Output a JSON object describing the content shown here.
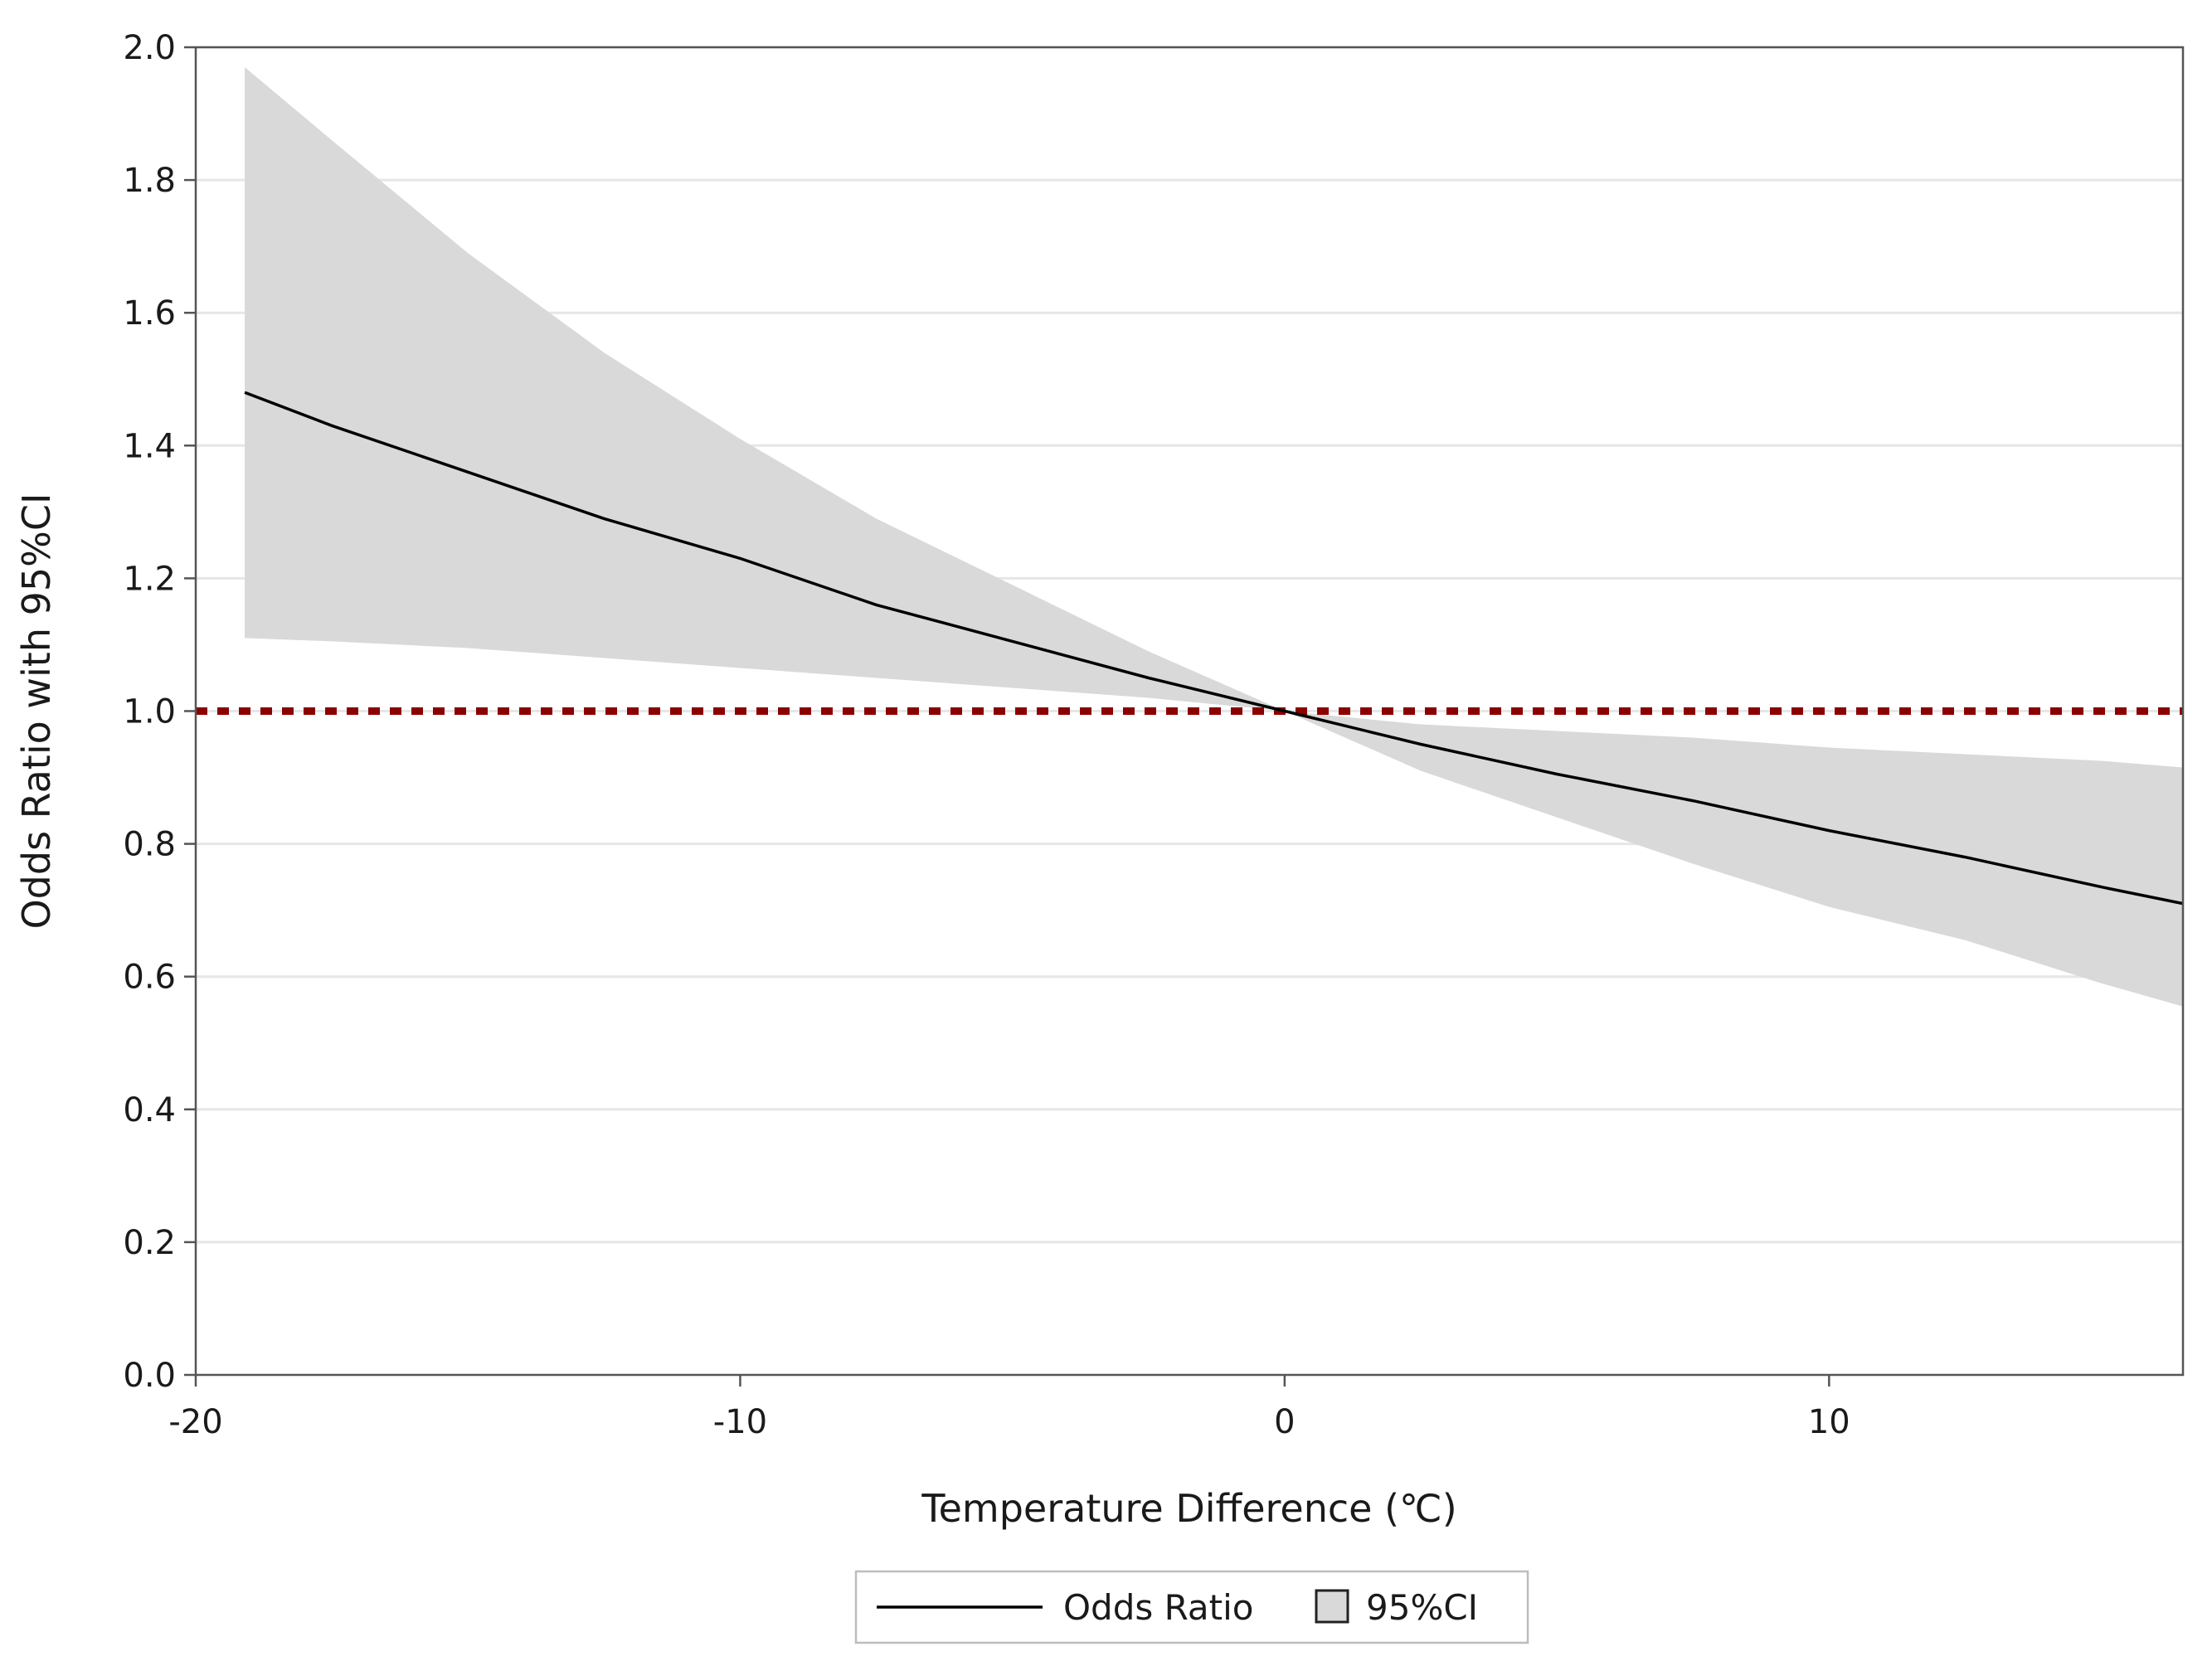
{
  "chart_data": {
    "type": "line",
    "title": "",
    "xlabel": "Temperature Difference (℃)",
    "ylabel": "Odds Ratio with 95%CI",
    "xlim": [
      -20,
      16.5
    ],
    "ylim": [
      0,
      2.0
    ],
    "x_ticks": [
      -20,
      -10,
      0,
      10
    ],
    "x_tick_labels": [
      "-20",
      "-10",
      "0",
      "10"
    ],
    "y_ticks": [
      0,
      0.2,
      0.4,
      0.6,
      0.8,
      1.0,
      1.2,
      1.4,
      1.6,
      1.8,
      2.0
    ],
    "y_tick_labels": [
      "0.0",
      "0.2",
      "0.4",
      "0.6",
      "0.8",
      "1.0",
      "1.2",
      "1.4",
      "1.6",
      "1.8",
      "2.0"
    ],
    "grid": "horizontal",
    "reference_line": {
      "y": 1.0,
      "style": "dotted",
      "color": "#8b0000"
    },
    "series": [
      {
        "name": "Odds Ratio",
        "kind": "line",
        "color": "#000000",
        "x": [
          -19.1,
          -17.5,
          -15,
          -12.5,
          -10,
          -7.5,
          -5,
          -2.5,
          0,
          2.5,
          5,
          7.5,
          10,
          12.5,
          15,
          16.5
        ],
        "y": [
          1.48,
          1.43,
          1.36,
          1.29,
          1.23,
          1.16,
          1.105,
          1.05,
          1.0,
          0.95,
          0.905,
          0.865,
          0.82,
          0.78,
          0.735,
          0.71
        ]
      },
      {
        "name": "95%CI",
        "kind": "band",
        "color": "#d9d9d9",
        "x": [
          -19.1,
          -17.5,
          -15,
          -12.5,
          -10,
          -7.5,
          -5,
          -2.5,
          0,
          2.5,
          5,
          7.5,
          10,
          12.5,
          15,
          16.5
        ],
        "lower": [
          1.11,
          1.105,
          1.095,
          1.08,
          1.065,
          1.05,
          1.035,
          1.02,
          1.0,
          0.91,
          0.84,
          0.77,
          0.705,
          0.655,
          0.59,
          0.555
        ],
        "upper": [
          1.97,
          1.86,
          1.69,
          1.54,
          1.41,
          1.29,
          1.19,
          1.09,
          1.0,
          0.98,
          0.97,
          0.96,
          0.945,
          0.935,
          0.925,
          0.915
        ]
      }
    ],
    "legend": {
      "placement": "bottom-center",
      "items": [
        {
          "label": "Odds Ratio",
          "symbol": "line"
        },
        {
          "label": "95%CI",
          "symbol": "box"
        }
      ]
    }
  }
}
